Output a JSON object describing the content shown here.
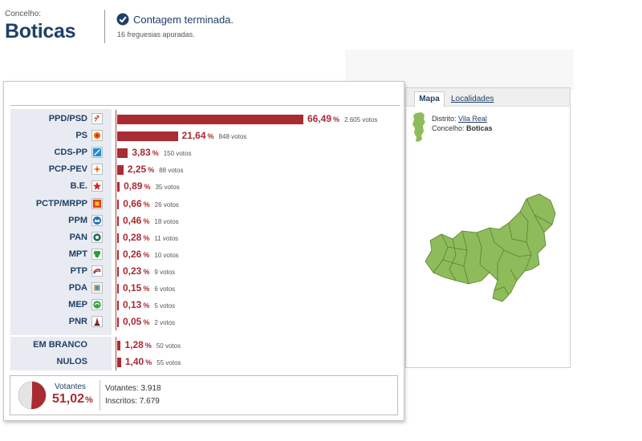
{
  "header": {
    "concelho_label": "Concelho:",
    "concelho_name": "Boticas",
    "status": "Contagem terminada.",
    "freguesias": "16 freguesias apuradas."
  },
  "map_panel": {
    "tab_mapa": "Mapa",
    "tab_localidades": "Localidades",
    "distrito_label": "Distrito:",
    "distrito_value": "Vila Real",
    "concelho_label": "Concelho:",
    "concelho_value": "Boticas",
    "map_color": "#8ebc5a"
  },
  "results": {
    "percent_unit": "%",
    "votes_unit": "votos",
    "bar_color": "#a82c32",
    "parties": [
      {
        "name": "PPD/PSD",
        "pct": "66,49",
        "pct_value": 66.49,
        "votes": "2.605",
        "logo": "psd-arrow-icon"
      },
      {
        "name": "PS",
        "pct": "21,64",
        "pct_value": 21.64,
        "votes": "848",
        "logo": "ps-fist-icon"
      },
      {
        "name": "CDS-PP",
        "pct": "3,83",
        "pct_value": 3.83,
        "votes": "150",
        "logo": "cds-arrow-icon"
      },
      {
        "name": "PCP-PEV",
        "pct": "2,25",
        "pct_value": 2.25,
        "votes": "88",
        "logo": "cdu-sun-icon"
      },
      {
        "name": "B.E.",
        "pct": "0,89",
        "pct_value": 0.89,
        "votes": "35",
        "logo": "be-star-icon"
      },
      {
        "name": "PCTP/MRPP",
        "pct": "0,66",
        "pct_value": 0.66,
        "votes": "26",
        "logo": "mrpp-flag-icon"
      },
      {
        "name": "PPM",
        "pct": "0,46",
        "pct_value": 0.46,
        "votes": "18",
        "logo": "ppm-crown-icon"
      },
      {
        "name": "PAN",
        "pct": "0,28",
        "pct_value": 0.28,
        "votes": "11",
        "logo": "pan-leaf-icon"
      },
      {
        "name": "MPT",
        "pct": "0,26",
        "pct_value": 0.26,
        "votes": "10",
        "logo": "mpt-clover-icon"
      },
      {
        "name": "PTP",
        "pct": "0,23",
        "pct_value": 0.23,
        "votes": "9",
        "logo": "ptp-swoosh-icon"
      },
      {
        "name": "PDA",
        "pct": "0,15",
        "pct_value": 0.15,
        "votes": "6",
        "logo": "pda-building-icon"
      },
      {
        "name": "MEP",
        "pct": "0,13",
        "pct_value": 0.13,
        "votes": "5",
        "logo": "mep-circle-icon"
      },
      {
        "name": "PNR",
        "pct": "0,05",
        "pct_value": 0.05,
        "votes": "2",
        "logo": "pnr-flame-icon"
      }
    ],
    "other": [
      {
        "name": "EM BRANCO",
        "pct": "1,28",
        "pct_value": 1.28,
        "votes": "50"
      },
      {
        "name": "NULOS",
        "pct": "1,40",
        "pct_value": 1.4,
        "votes": "55"
      }
    ]
  },
  "voters": {
    "label": "Votantes",
    "pct": "51,02",
    "pct_value": 51.02,
    "pct_unit": "%",
    "votantes_label": "Votantes:",
    "votantes_value": "3.918",
    "inscritos_label": "Inscritos:",
    "inscritos_value": "7.679"
  }
}
